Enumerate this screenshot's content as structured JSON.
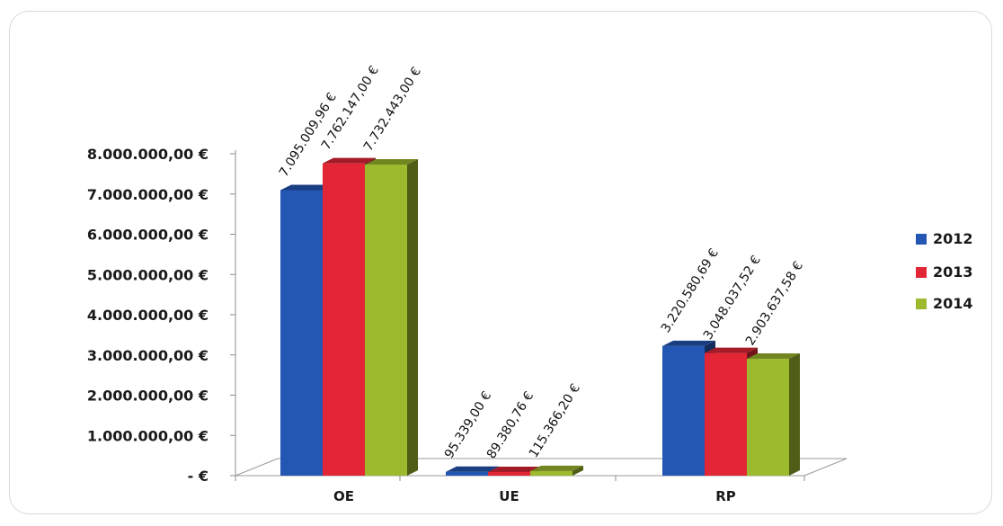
{
  "chart_data": {
    "type": "bar",
    "categories": [
      "OE",
      "UE",
      "RP"
    ],
    "series": [
      {
        "name": "2012",
        "color": "#2456b4",
        "values": [
          7095009.96,
          95339.0,
          3220580.69
        ],
        "labels": [
          "7.095.009,96 €",
          "95.339,00 €",
          "3.220.580,69 €"
        ]
      },
      {
        "name": "2013",
        "color": "#e32636",
        "values": [
          7762147.0,
          89380.76,
          3048037.52
        ],
        "labels": [
          "7.762.147,00 €",
          "89.380,76 €",
          "3.048.037,52 €"
        ]
      },
      {
        "name": "2014",
        "color": "#9dba2e",
        "values": [
          7732443.0,
          115366.2,
          2903637.58
        ],
        "labels": [
          "7.732.443,00 €",
          "115.366,20 €",
          "2.903.637,58 €"
        ]
      }
    ],
    "yticks": [
      0,
      1000000,
      2000000,
      3000000,
      4000000,
      5000000,
      6000000,
      7000000,
      8000000
    ],
    "ytick_labels": [
      "-  €",
      "1.000.000,00 €",
      "2.000.000,00 €",
      "3.000.000,00 €",
      "4.000.000,00 €",
      "5.000.000,00 €",
      "6.000.000,00 €",
      "7.000.000,00 €",
      "8.000.000,00 €"
    ],
    "ylim": [
      0,
      8000000
    ],
    "legend_position": "right",
    "style": "3d-clustered-column",
    "grid": false
  }
}
